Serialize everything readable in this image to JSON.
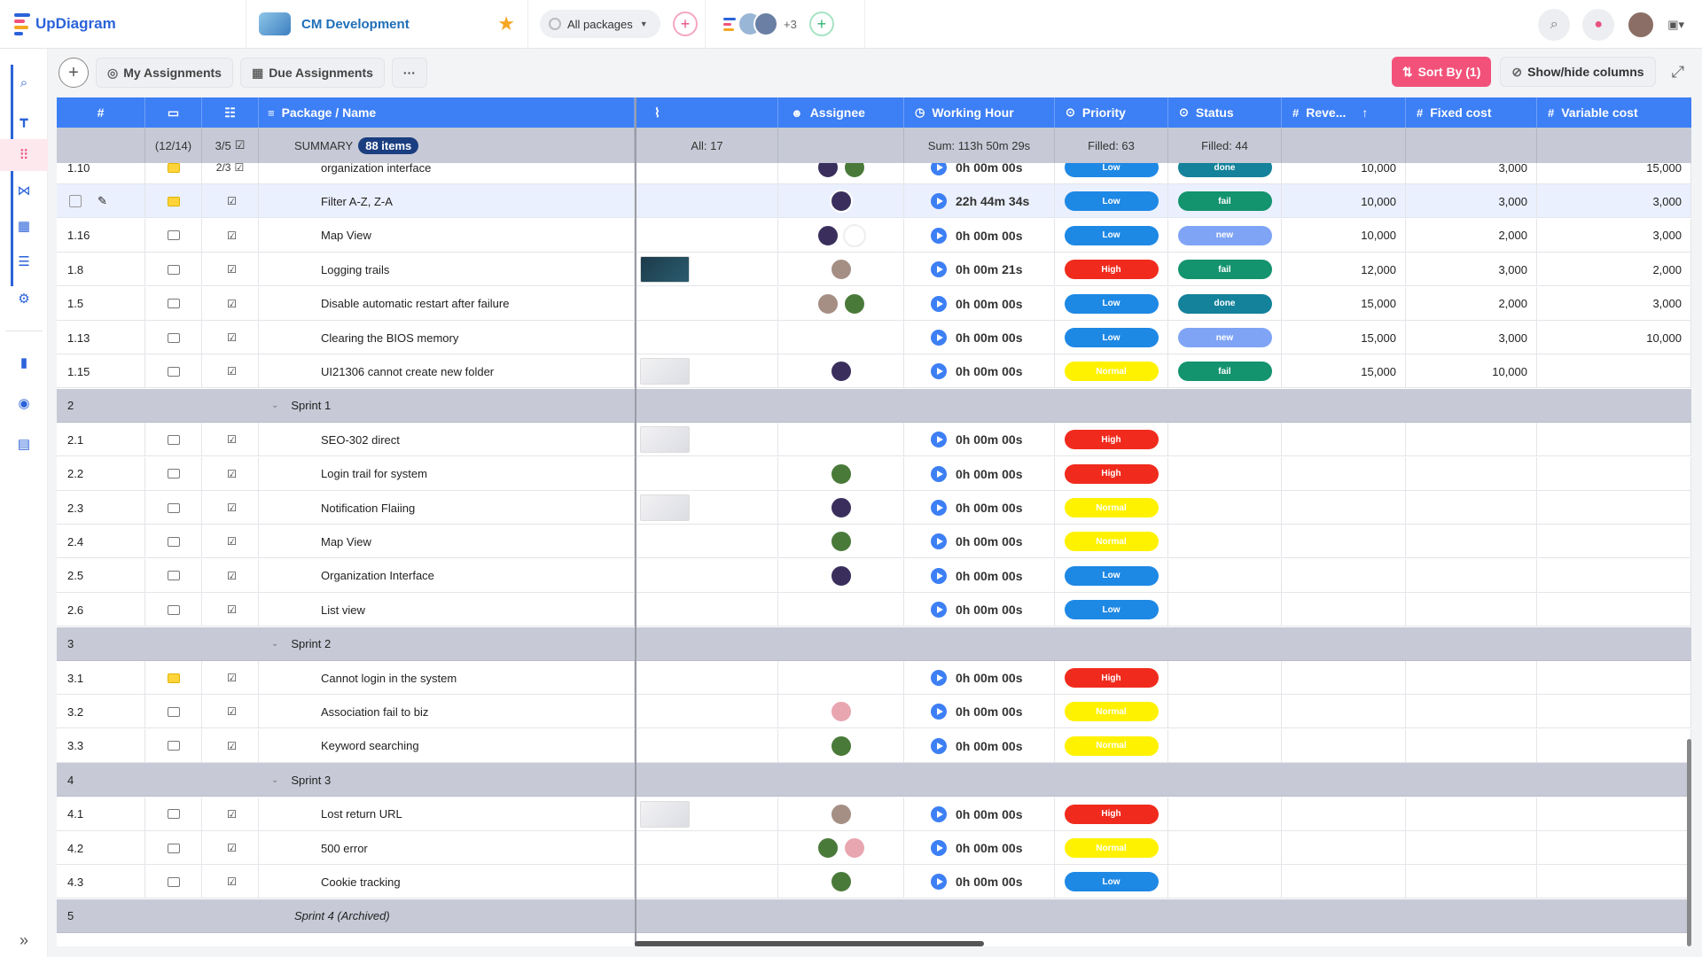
{
  "app": {
    "name": "UpDiagram",
    "project": "CM Development",
    "package_select": "All packages",
    "member_extra": "+3"
  },
  "toolbar": {
    "my_assignments": "My Assignments",
    "due_assignments": "Due Assignments",
    "more": "···",
    "sort_by": "Sort By (1)",
    "show_hide": "Show/hide columns"
  },
  "columns": {
    "num": "#",
    "name": "Package / Name",
    "assignee": "Assignee",
    "working_hour": "Working Hour",
    "priority": "Priority",
    "status": "Status",
    "revenue": "Reve...",
    "fixed_cost": "Fixed cost",
    "variable_cost": "Variable cost"
  },
  "summary": {
    "comments": "(12/14)",
    "checks": "3/5",
    "label": "SUMMARY",
    "items": "88 items",
    "attachments": "All: 17",
    "working": "Sum: 113h 50m 29s",
    "priority": "Filled: 63",
    "status": "Filled: 44"
  },
  "colors": {
    "primary": "#3d7ff5",
    "accent": "#f2527a",
    "low": "#1e88e5",
    "high": "#f02b1d",
    "normal": "#fff200"
  },
  "rows": [
    {
      "type": "task",
      "id": "1.10",
      "cmt": true,
      "chk": "2/3",
      "name": "organization interface",
      "thumb": "",
      "av": [
        "#3a2f5c",
        "#4a7a3a"
      ],
      "wh": "0h 00m 00s",
      "pr": "Low",
      "st": "done",
      "rev": "10,000",
      "fc": "3,000",
      "vc": "15,000"
    },
    {
      "type": "task",
      "id": "",
      "cmt": true,
      "chk": "",
      "name": "Filter A-Z, Z-A",
      "thumb": "",
      "av": [
        "#3a2f5c"
      ],
      "wh": "22h 44m 34s",
      "pr": "Low",
      "st": "fail",
      "rev": "10,000",
      "fc": "3,000",
      "vc": "3,000",
      "sel": true
    },
    {
      "type": "task",
      "id": "1.16",
      "cmt": false,
      "chk": "",
      "name": "Map View",
      "thumb": "",
      "av": [
        "#3a2f5c",
        "logo"
      ],
      "wh": "0h 00m 00s",
      "pr": "Low",
      "st": "new",
      "rev": "10,000",
      "fc": "2,000",
      "vc": "3,000"
    },
    {
      "type": "task",
      "id": "1.8",
      "cmt": false,
      "chk": "",
      "name": "Logging trails",
      "thumb": "dark",
      "av": [
        "#a58f84"
      ],
      "wh": "0h 00m 21s",
      "pr": "High",
      "st": "fail",
      "rev": "12,000",
      "fc": "3,000",
      "vc": "2,000"
    },
    {
      "type": "task",
      "id": "1.5",
      "cmt": false,
      "chk": "",
      "name": "Disable automatic restart after failure",
      "thumb": "",
      "av": [
        "#a58f84",
        "#4a7a3a"
      ],
      "wh": "0h 00m 00s",
      "pr": "Low",
      "st": "done",
      "rev": "15,000",
      "fc": "2,000",
      "vc": "3,000"
    },
    {
      "type": "task",
      "id": "1.13",
      "cmt": false,
      "chk": "",
      "name": "Clearing the BIOS memory",
      "thumb": "",
      "av": [],
      "wh": "0h 00m 00s",
      "pr": "Low",
      "st": "new",
      "rev": "15,000",
      "fc": "3,000",
      "vc": "10,000"
    },
    {
      "type": "task",
      "id": "1.15",
      "cmt": false,
      "chk": "",
      "name": "UI21306 cannot create new folder",
      "thumb": "light",
      "av": [
        "#3a2f5c"
      ],
      "wh": "0h 00m 00s",
      "pr": "Normal",
      "st": "fail",
      "rev": "15,000",
      "fc": "10,000",
      "vc": ""
    },
    {
      "type": "group",
      "id": "2",
      "name": "Sprint 1"
    },
    {
      "type": "task",
      "id": "2.1",
      "cmt": false,
      "chk": "",
      "name": "SEO-302 direct",
      "thumb": "light",
      "av": [],
      "wh": "0h 00m 00s",
      "pr": "High",
      "st": "",
      "rev": "",
      "fc": "",
      "vc": ""
    },
    {
      "type": "task",
      "id": "2.2",
      "cmt": false,
      "chk": "",
      "name": "Login trail for system",
      "thumb": "",
      "av": [
        "#4a7a3a"
      ],
      "wh": "0h 00m 00s",
      "pr": "High",
      "st": "",
      "rev": "",
      "fc": "",
      "vc": ""
    },
    {
      "type": "task",
      "id": "2.3",
      "cmt": false,
      "chk": "",
      "name": "Notification Flaiing",
      "thumb": "light",
      "av": [
        "#3a2f5c"
      ],
      "wh": "0h 00m 00s",
      "pr": "Normal",
      "st": "",
      "rev": "",
      "fc": "",
      "vc": ""
    },
    {
      "type": "task",
      "id": "2.4",
      "cmt": false,
      "chk": "",
      "name": "Map View",
      "thumb": "",
      "av": [
        "#4a7a3a"
      ],
      "wh": "0h 00m 00s",
      "pr": "Normal",
      "st": "",
      "rev": "",
      "fc": "",
      "vc": ""
    },
    {
      "type": "task",
      "id": "2.5",
      "cmt": false,
      "chk": "",
      "name": "Organization Interface",
      "thumb": "",
      "av": [
        "#3a2f5c"
      ],
      "wh": "0h 00m 00s",
      "pr": "Low",
      "st": "",
      "rev": "",
      "fc": "",
      "vc": ""
    },
    {
      "type": "task",
      "id": "2.6",
      "cmt": false,
      "chk": "",
      "name": "List view",
      "thumb": "",
      "av": [],
      "wh": "0h 00m 00s",
      "pr": "Low",
      "st": "",
      "rev": "",
      "fc": "",
      "vc": ""
    },
    {
      "type": "group",
      "id": "3",
      "name": "Sprint 2"
    },
    {
      "type": "task",
      "id": "3.1",
      "cmt": true,
      "chk": "",
      "name": "Cannot login in the system",
      "thumb": "",
      "av": [],
      "wh": "0h 00m 00s",
      "pr": "High",
      "st": "",
      "rev": "",
      "fc": "",
      "vc": ""
    },
    {
      "type": "task",
      "id": "3.2",
      "cmt": false,
      "chk": "",
      "name": "Association fail to biz",
      "thumb": "",
      "av": [
        "#e8a6b0"
      ],
      "wh": "0h 00m 00s",
      "pr": "Normal",
      "st": "",
      "rev": "",
      "fc": "",
      "vc": ""
    },
    {
      "type": "task",
      "id": "3.3",
      "cmt": false,
      "chk": "",
      "name": "Keyword searching",
      "thumb": "",
      "av": [
        "#4a7a3a"
      ],
      "wh": "0h 00m 00s",
      "pr": "Normal",
      "st": "",
      "rev": "",
      "fc": "",
      "vc": ""
    },
    {
      "type": "group",
      "id": "4",
      "name": "Sprint 3"
    },
    {
      "type": "task",
      "id": "4.1",
      "cmt": false,
      "chk": "",
      "name": "Lost return URL",
      "thumb": "light",
      "av": [
        "#a58f84"
      ],
      "wh": "0h 00m 00s",
      "pr": "High",
      "st": "",
      "rev": "",
      "fc": "",
      "vc": ""
    },
    {
      "type": "task",
      "id": "4.2",
      "cmt": false,
      "chk": "",
      "name": "500 error",
      "thumb": "",
      "av": [
        "#4a7a3a",
        "#e8a6b0"
      ],
      "wh": "0h 00m 00s",
      "pr": "Normal",
      "st": "",
      "rev": "",
      "fc": "",
      "vc": ""
    },
    {
      "type": "task",
      "id": "4.3",
      "cmt": false,
      "chk": "",
      "name": "Cookie tracking",
      "thumb": "",
      "av": [
        "#4a7a3a"
      ],
      "wh": "0h 00m 00s",
      "pr": "Low",
      "st": "",
      "rev": "",
      "fc": "",
      "vc": ""
    },
    {
      "type": "group",
      "id": "5",
      "name": "Sprint 4 (Archived)",
      "archived": true
    }
  ]
}
